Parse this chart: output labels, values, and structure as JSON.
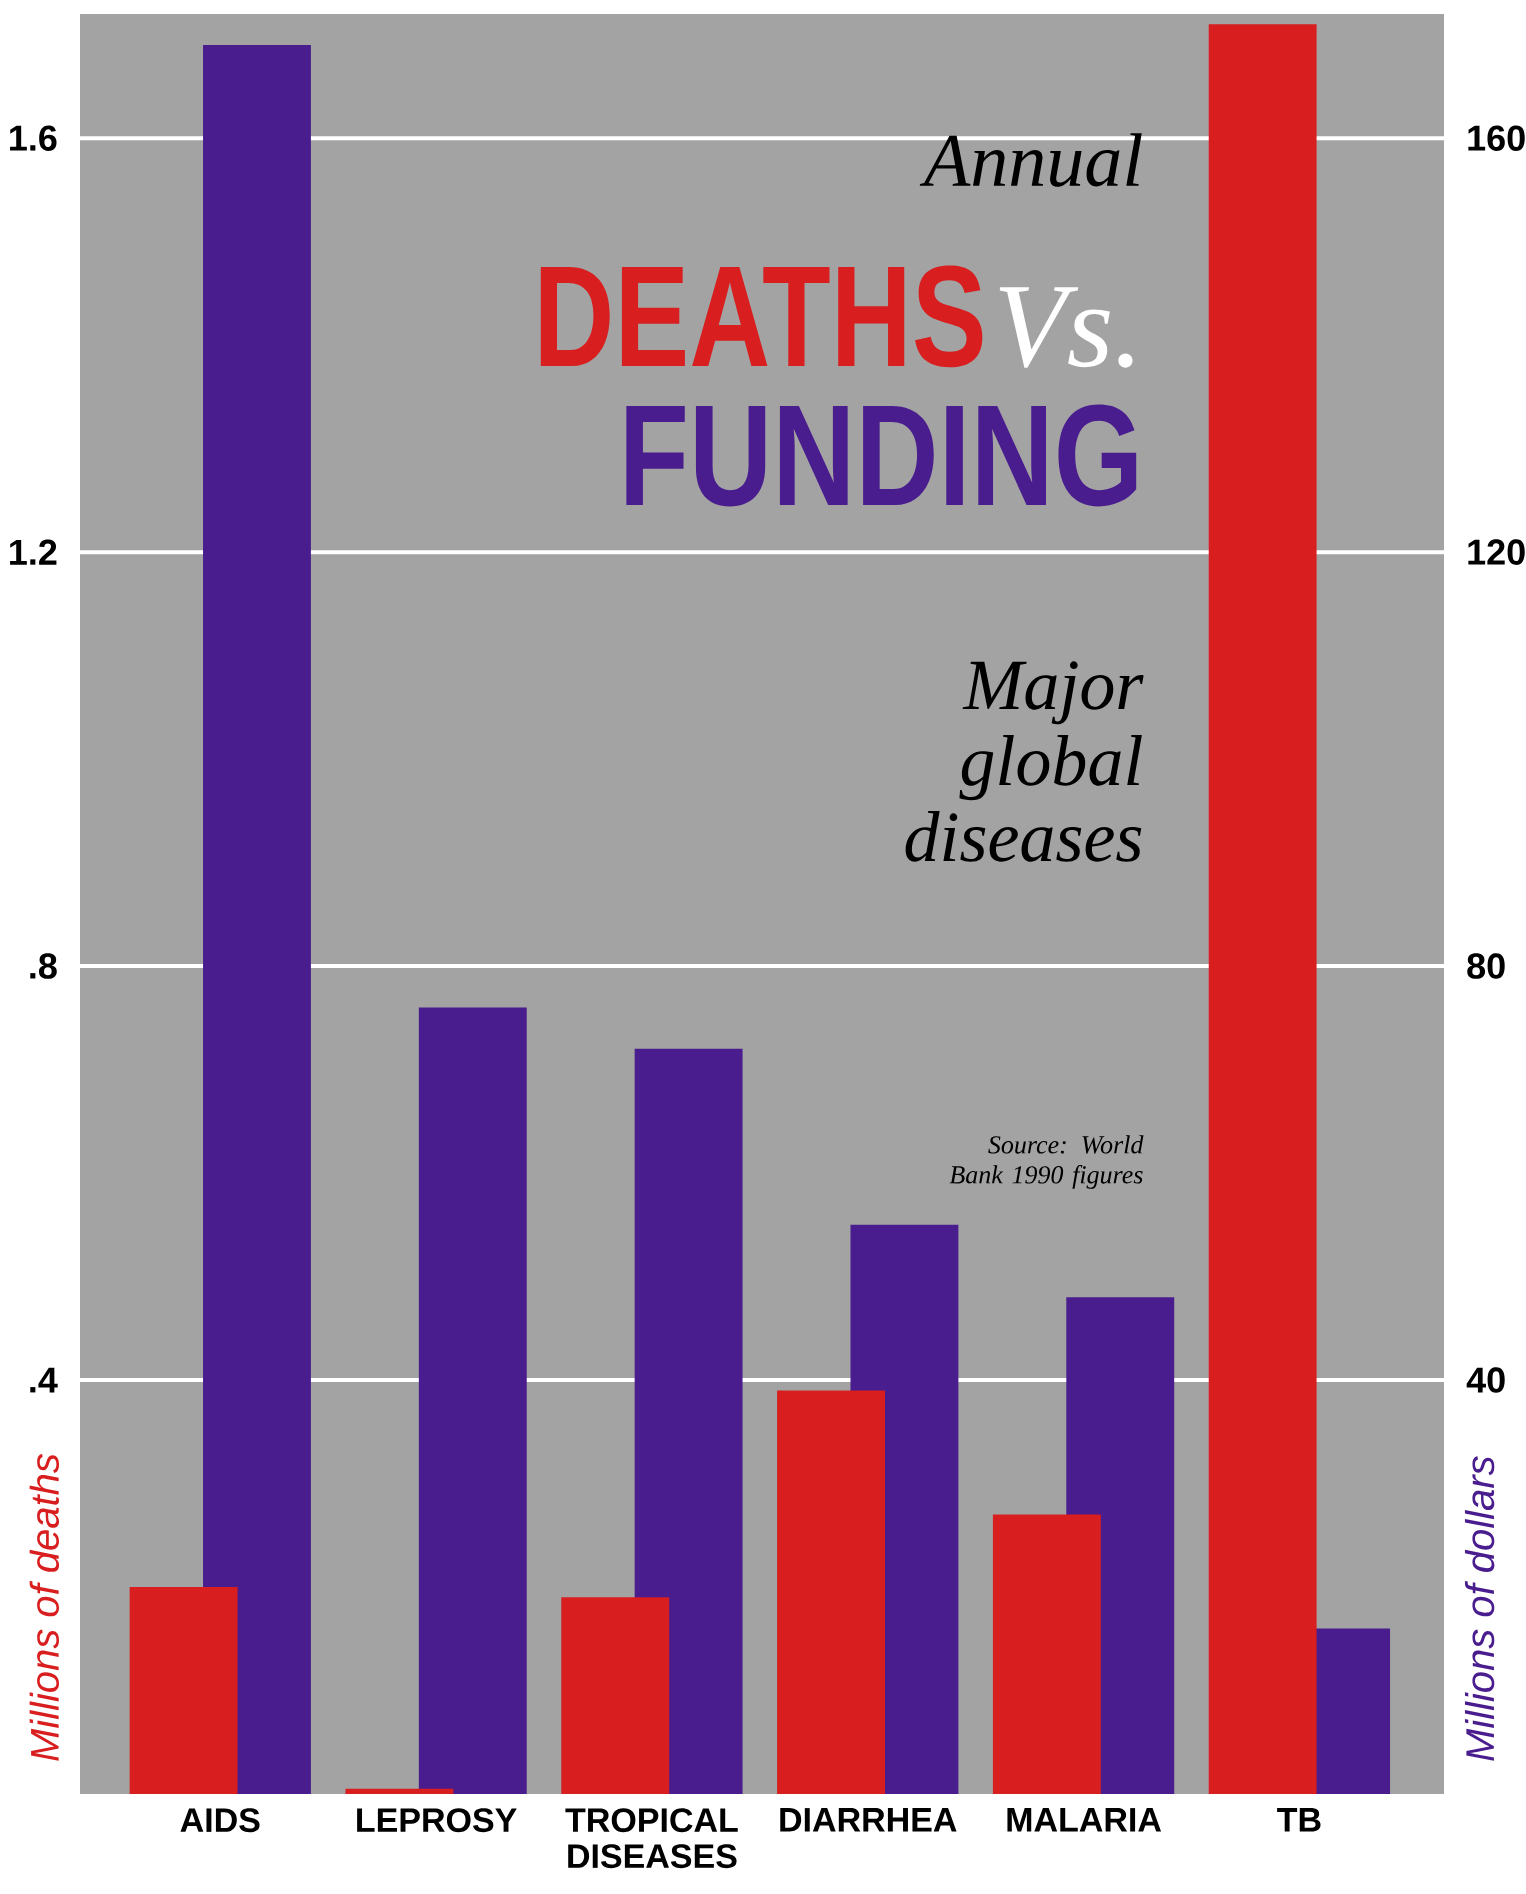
{
  "chart_data": {
    "type": "bar",
    "title": "Annual",
    "subtitle": "Major global diseases",
    "annotations": [
      "DEATHS",
      "Vs.",
      "FUNDING",
      "Source: World Bank 1990 figures"
    ],
    "categories": [
      "AIDS",
      "LEPROSY",
      "TROPICAL DISEASES",
      "DIARRHEA",
      "MALARIA",
      "TB"
    ],
    "series": [
      {
        "color": "#d81e1e",
        "axis": "y",
        "values": [
          0.2,
          0.005,
          0.19,
          0.39,
          0.27,
          1.71
        ]
      },
      {
        "color": "#4a1d8f",
        "axis": "y2",
        "values": [
          169,
          76,
          72,
          55,
          48,
          16
        ]
      }
    ],
    "ylabel": "Millions of deaths",
    "y2label": "Millions of dollars",
    "ylim": [
      0,
      1.72
    ],
    "yticks": [
      {
        "value": 0.4,
        "label": ".4"
      },
      {
        "value": 0.8,
        "label": ".8"
      },
      1.2,
      1.6
    ],
    "y2lim": [
      0,
      172
    ],
    "y2ticks": [
      40,
      80,
      120,
      160
    ],
    "grid": "y"
  }
}
